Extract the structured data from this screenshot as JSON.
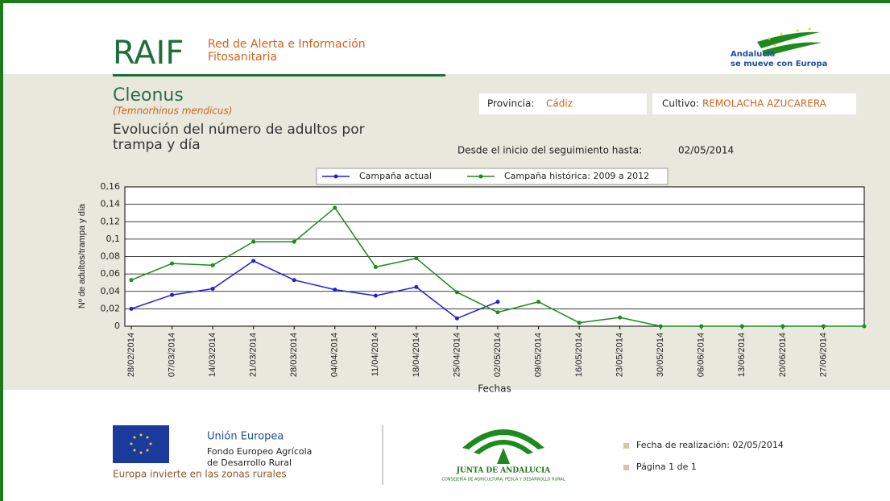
{
  "header": {
    "logo": "RAIF",
    "name_line1": "Red de Alerta e Información",
    "name_line2": "Fitosanitaria",
    "region_line1": "Andalucía",
    "region_line2": "se mueve con Europa"
  },
  "pest": {
    "name": "Cleonus",
    "scientific": "(Temnorhinus mendicus)",
    "title_line1": "Evolución del número de adultos por",
    "title_line2": "trampa y día"
  },
  "info": {
    "province_label": "Provincia:",
    "province": "Cádiz",
    "crop_label": "Cultivo:",
    "crop": "REMOLACHA AZUCARERA",
    "since_label": "Desde el inicio del seguimiento hasta:",
    "since_date": "02/05/2014"
  },
  "chart_data": {
    "type": "line",
    "categories": [
      "28/02/2014",
      "07/03/2014",
      "14/03/2014",
      "21/03/2014",
      "28/03/2014",
      "04/04/2014",
      "11/04/2014",
      "18/04/2014",
      "25/04/2014",
      "02/05/2014",
      "09/05/2014",
      "16/05/2014",
      "23/05/2014",
      "30/05/2014",
      "06/06/2014",
      "13/06/2014",
      "20/06/2014",
      "27/06/2014",
      null
    ],
    "series": [
      {
        "name": "Campaña actual",
        "color": "#1f1fd6",
        "values": [
          0.02,
          0.036,
          0.043,
          0.075,
          0.053,
          0.042,
          0.035,
          0.045,
          0.009,
          0.028,
          null,
          null,
          null,
          null,
          null,
          null,
          null,
          null,
          null
        ]
      },
      {
        "name": "Campaña histórica: 2009 a 2012",
        "color": "#1d8a1d",
        "values": [
          0.053,
          0.072,
          0.07,
          0.097,
          0.097,
          0.136,
          0.068,
          0.078,
          0.039,
          0.016,
          0.028,
          0.004,
          0.01,
          0,
          0,
          0,
          0,
          0,
          0
        ]
      }
    ],
    "xlabel": "Fechas",
    "ylabel": "Nº de adultos/trampa y día",
    "ylim": [
      0,
      0.16
    ],
    "yticks": [
      0,
      {
        "value": 0.02,
        "label": "0,02"
      },
      {
        "value": 0.04,
        "label": "0,04"
      },
      {
        "value": 0.06,
        "label": "0,06"
      },
      {
        "value": 0.08,
        "label": "0,08"
      },
      {
        "value": 0.1,
        "label": "0,1"
      },
      {
        "value": 0.12,
        "label": "0,12"
      },
      {
        "value": 0.14,
        "label": "0,14"
      },
      {
        "value": 0.16,
        "label": "0,16"
      }
    ],
    "grid": true,
    "legend": "top"
  },
  "footer": {
    "eu_title": "Unión Europea",
    "eu_line1": "Fondo Europeo Agrícola",
    "eu_line2": "de Desarrollo Rural",
    "eu_motto": "Europa invierte en las zonas rurales",
    "junta": "JUNTA DE ANDALUCIA",
    "ministry": "CONSEJERÍA DE AGRICULTURA, PESCA Y DESARROLLO RURAL",
    "date_line": "Fecha de realización: 02/05/2014",
    "page_line": "Página 1 de 1"
  }
}
